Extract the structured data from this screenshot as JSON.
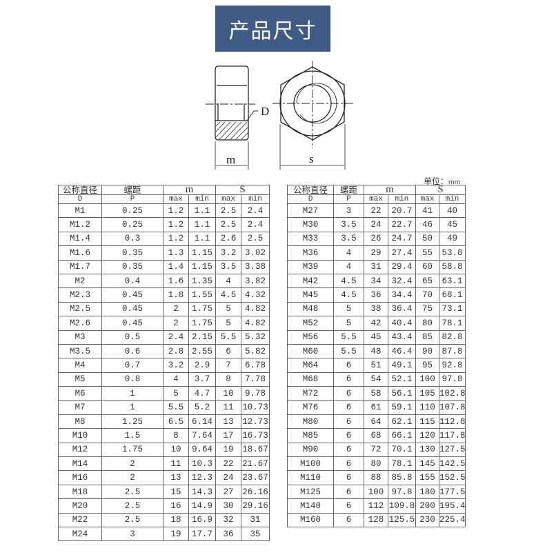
{
  "title": "产品尺寸",
  "drawing": {
    "label_d": "D",
    "label_m": "m",
    "label_s": "s"
  },
  "unit": {
    "label": "单位：",
    "value": "mm"
  },
  "headers": {
    "nominal": "公称直径",
    "nominal_sym": "D",
    "pitch": "螺距",
    "pitch_sym": "P",
    "m": "m",
    "s": "S",
    "max": "max",
    "min": "min"
  },
  "left_rows": [
    [
      "M1",
      "0.25",
      "1.2",
      "1.1",
      "2.5",
      "2.4"
    ],
    [
      "M1.2",
      "0.25",
      "1.2",
      "1.1",
      "2.5",
      "2.4"
    ],
    [
      "M1.4",
      "0.3",
      "1.2",
      "1.1",
      "2.6",
      "2.5"
    ],
    [
      "M1.6",
      "0.35",
      "1.3",
      "1.15",
      "3.2",
      "3.02"
    ],
    [
      "M1.7",
      "0.35",
      "1.4",
      "1.15",
      "3.5",
      "3.38"
    ],
    [
      "M2",
      "0.4",
      "1.6",
      "1.35",
      "4",
      "3.82"
    ],
    [
      "M2.3",
      "0.45",
      "1.8",
      "1.55",
      "4.5",
      "4.32"
    ],
    [
      "M2.5",
      "0.45",
      "2",
      "1.75",
      "5",
      "4.82"
    ],
    [
      "M2.6",
      "0.45",
      "2",
      "1.75",
      "5",
      "4.82"
    ],
    [
      "M3",
      "0.5",
      "2.4",
      "2.15",
      "5.5",
      "5.32"
    ],
    [
      "M3.5",
      "0.6",
      "2.8",
      "2.55",
      "6",
      "5.82"
    ],
    [
      "M4",
      "0.7",
      "3.2",
      "2.9",
      "7",
      "6.78"
    ],
    [
      "M5",
      "0.8",
      "4",
      "3.7",
      "8",
      "7.78"
    ],
    [
      "M6",
      "1",
      "5",
      "4.7",
      "10",
      "9.78"
    ],
    [
      "M7",
      "1",
      "5.5",
      "5.2",
      "11",
      "10.73"
    ],
    [
      "M8",
      "1.25",
      "6.5",
      "6.14",
      "13",
      "12.73"
    ],
    [
      "M10",
      "1.5",
      "8",
      "7.64",
      "17",
      "16.73"
    ],
    [
      "M12",
      "1.75",
      "10",
      "9.64",
      "19",
      "18.67"
    ],
    [
      "M14",
      "2",
      "11",
      "10.3",
      "22",
      "21.67"
    ],
    [
      "M16",
      "2",
      "13",
      "12.3",
      "24",
      "23.67"
    ],
    [
      "M18",
      "2.5",
      "15",
      "14.3",
      "27",
      "26.16"
    ],
    [
      "M20",
      "2.5",
      "16",
      "14.9",
      "30",
      "29.16"
    ],
    [
      "M22",
      "2.5",
      "18",
      "16.9",
      "32",
      "31"
    ],
    [
      "M24",
      "3",
      "19",
      "17.7",
      "36",
      "35"
    ]
  ],
  "right_rows": [
    [
      "M27",
      "3",
      "22",
      "20.7",
      "41",
      "40"
    ],
    [
      "M30",
      "3.5",
      "24",
      "22.7",
      "46",
      "45"
    ],
    [
      "M33",
      "3.5",
      "26",
      "24.7",
      "50",
      "49"
    ],
    [
      "M36",
      "4",
      "29",
      "27.4",
      "55",
      "53.8"
    ],
    [
      "M39",
      "4",
      "31",
      "29.4",
      "60",
      "58.8"
    ],
    [
      "M42",
      "4.5",
      "34",
      "32.4",
      "65",
      "63.1"
    ],
    [
      "M45",
      "4.5",
      "36",
      "34.4",
      "70",
      "68.1"
    ],
    [
      "M48",
      "5",
      "38",
      "36.4",
      "75",
      "73.1"
    ],
    [
      "M52",
      "5",
      "42",
      "40.4",
      "80",
      "78.1"
    ],
    [
      "M56",
      "5.5",
      "45",
      "43.4",
      "85",
      "82.8"
    ],
    [
      "M60",
      "5.5",
      "48",
      "46.4",
      "90",
      "87.8"
    ],
    [
      "M64",
      "6",
      "51",
      "49.1",
      "95",
      "92.8"
    ],
    [
      "M68",
      "6",
      "54",
      "52.1",
      "100",
      "97.8"
    ],
    [
      "M72",
      "6",
      "58",
      "56.1",
      "105",
      "102.8"
    ],
    [
      "M76",
      "6",
      "61",
      "59.1",
      "110",
      "107.8"
    ],
    [
      "M80",
      "6",
      "64",
      "62.1",
      "115",
      "112.8"
    ],
    [
      "M85",
      "6",
      "68",
      "66.1",
      "120",
      "117.8"
    ],
    [
      "M90",
      "6",
      "72",
      "70.1",
      "130",
      "127.5"
    ],
    [
      "M100",
      "6",
      "80",
      "78.1",
      "145",
      "142.5"
    ],
    [
      "M110",
      "6",
      "88",
      "85.8",
      "155",
      "152.5"
    ],
    [
      "M125",
      "6",
      "100",
      "97.8",
      "180",
      "177.5"
    ],
    [
      "M140",
      "6",
      "112",
      "109.8",
      "200",
      "195.4"
    ],
    [
      "M160",
      "6",
      "128",
      "125.5",
      "230",
      "225.4"
    ]
  ]
}
